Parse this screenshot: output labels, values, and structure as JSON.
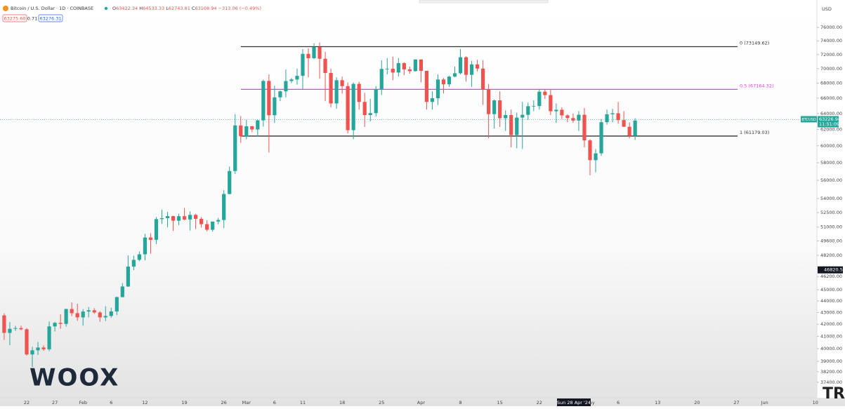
{
  "chart_data": {
    "type": "candlestick",
    "title": "Bitcoin / U.S. Dollar · 1D · COINBASE",
    "ohlc_legend": [
      {
        "key": "O",
        "value": 63422.34
      },
      {
        "key": "H",
        "value": 64533.33
      },
      {
        "key": "L",
        "value": 62743.81
      },
      {
        "key": "C",
        "value": 63108.94
      }
    ],
    "change": "−313.06 (−0.49%)",
    "bid": "63275.60",
    "spread": 0.71,
    "ask": 63276.31,
    "currency": "USD",
    "log_scale": true,
    "up_color": "#26a69a",
    "down_color": "#ef5350",
    "ylim": [
      36260,
      79400
    ],
    "yticks": [
      {
        "value": 76000,
        "label": "76000.00"
      },
      {
        "value": 74000,
        "label": "74000.00"
      },
      {
        "value": 72000,
        "label": "72000.00"
      },
      {
        "value": 70000,
        "label": "70000.00"
      },
      {
        "value": 68000,
        "label": "68000.00"
      },
      {
        "value": 66000,
        "label": "66000.00"
      },
      {
        "value": 64000,
        "label": "64000.00"
      },
      {
        "value": 62000,
        "label": "62000.00"
      },
      {
        "value": 60000,
        "label": "60000.00"
      },
      {
        "value": 58000,
        "label": "58000.00"
      },
      {
        "value": 56000,
        "label": "56000.00"
      },
      {
        "value": 54000,
        "label": "54000.00"
      },
      {
        "value": 52500,
        "label": "52500.00"
      },
      {
        "value": 51000,
        "label": "51000.00"
      },
      {
        "value": 49600,
        "label": "49600.00"
      },
      {
        "value": 48200,
        "label": "48200.00"
      },
      {
        "value": 46200,
        "label": "46200.00"
      },
      {
        "value": 45000,
        "label": "45000.00"
      },
      {
        "value": 44000,
        "label": "44000.00"
      },
      {
        "value": 43000,
        "label": "43000.00"
      },
      {
        "value": 42000,
        "label": "42000.00"
      },
      {
        "value": 41000,
        "label": "41000.00"
      },
      {
        "value": 40000,
        "label": "40000.00"
      },
      {
        "value": 39000,
        "label": "39000.00"
      },
      {
        "value": 38200,
        "label": "38200.00"
      },
      {
        "value": 37400,
        "label": "37400.00"
      }
    ],
    "categories": [
      null,
      null,
      null,
      null,
      "22",
      null,
      null,
      null,
      null,
      "27",
      null,
      null,
      null,
      null,
      "Feb",
      null,
      null,
      null,
      null,
      "6",
      null,
      null,
      null,
      null,
      null,
      "12",
      null,
      null,
      null,
      null,
      null,
      null,
      "19",
      null,
      null,
      null,
      null,
      null,
      null,
      "26",
      null,
      null,
      null,
      "Mar",
      null,
      null,
      null,
      null,
      "6",
      null,
      null,
      null,
      null,
      "11",
      null,
      null,
      null,
      null,
      null,
      null,
      "18",
      null,
      null,
      null,
      null,
      null,
      null,
      "25",
      null,
      null,
      null,
      null,
      null,
      null,
      "Apr",
      null,
      null,
      null,
      null,
      null,
      null,
      "8",
      null,
      null,
      null,
      null,
      null,
      null,
      "15",
      null,
      null,
      null,
      null,
      null,
      null,
      "22",
      null,
      null,
      null,
      null,
      null,
      null,
      null,
      null,
      "May",
      null,
      null,
      null,
      null,
      "6",
      null,
      null,
      null,
      null,
      null,
      null,
      "13",
      null,
      null,
      null,
      null,
      null,
      null,
      "20",
      null,
      null,
      null,
      null,
      null,
      null,
      "27",
      null,
      null,
      null,
      null,
      "Jun",
      null,
      null,
      null,
      null,
      null,
      null,
      null,
      null,
      "10"
    ],
    "series": [
      {
        "name": "BTCUSD",
        "values": [
          [
            42750,
            42930,
            40700,
            41280
          ],
          [
            41280,
            42180,
            40280,
            41620
          ],
          [
            41620,
            41870,
            41450,
            41680
          ],
          [
            41680,
            41880,
            41500,
            41580
          ],
          [
            41580,
            41680,
            39450,
            39540
          ],
          [
            39540,
            40150,
            38560,
            39870
          ],
          [
            39870,
            40540,
            39500,
            40090
          ],
          [
            40090,
            40260,
            39830,
            39950
          ],
          [
            39950,
            42240,
            39800,
            41820
          ],
          [
            41820,
            42200,
            41400,
            42120
          ],
          [
            42120,
            42840,
            41620,
            42030
          ],
          [
            42030,
            43320,
            41800,
            43300
          ],
          [
            43300,
            43880,
            42690,
            42940
          ],
          [
            42940,
            43750,
            42280,
            42580
          ],
          [
            42580,
            43290,
            41880,
            43080
          ],
          [
            43080,
            43480,
            42580,
            43190
          ],
          [
            43190,
            43380,
            42880,
            43000
          ],
          [
            43000,
            43120,
            42200,
            42580
          ],
          [
            42580,
            43540,
            42270,
            42700
          ],
          [
            42700,
            43400,
            42550,
            43090
          ],
          [
            43090,
            44380,
            42780,
            44340
          ],
          [
            44340,
            45600,
            44330,
            45290
          ],
          [
            45290,
            48200,
            45250,
            47130
          ],
          [
            47130,
            48170,
            46800,
            47770
          ],
          [
            47770,
            48580,
            47640,
            48300
          ],
          [
            48300,
            50330,
            47720,
            49950
          ],
          [
            49950,
            50370,
            48360,
            49720
          ],
          [
            49720,
            52040,
            49300,
            51820
          ],
          [
            51820,
            52820,
            51330,
            51920
          ],
          [
            51920,
            52580,
            51000,
            52130
          ],
          [
            52130,
            52170,
            50620,
            51660
          ],
          [
            51660,
            52380,
            51200,
            52120
          ],
          [
            52120,
            52980,
            51700,
            51780
          ],
          [
            51780,
            52620,
            50650,
            52260
          ],
          [
            52260,
            52380,
            50800,
            51850
          ],
          [
            51850,
            52040,
            50950,
            51300
          ],
          [
            51300,
            51690,
            50570,
            50730
          ],
          [
            50730,
            51380,
            50540,
            51570
          ],
          [
            51570,
            51950,
            51280,
            51730
          ],
          [
            51730,
            54900,
            50900,
            54490
          ],
          [
            54490,
            57570,
            54450,
            57050
          ],
          [
            57050,
            63930,
            56700,
            62490
          ],
          [
            62490,
            63680,
            60360,
            61160
          ],
          [
            61160,
            63170,
            60790,
            62390
          ],
          [
            62390,
            62430,
            61650,
            61990
          ],
          [
            61990,
            63240,
            61120,
            63130
          ],
          [
            63130,
            68500,
            62350,
            68300
          ],
          [
            68300,
            69200,
            59200,
            63780
          ],
          [
            63780,
            67650,
            62800,
            66100
          ],
          [
            66100,
            67000,
            65600,
            66900
          ],
          [
            66900,
            69900,
            66100,
            68290
          ],
          [
            68290,
            68700,
            68000,
            68500
          ],
          [
            68500,
            70000,
            67800,
            69000
          ],
          [
            69000,
            72800,
            67200,
            72100
          ],
          [
            72100,
            72900,
            68800,
            71480
          ],
          [
            71480,
            73650,
            71330,
            73100
          ],
          [
            73100,
            73750,
            68600,
            71400
          ],
          [
            71400,
            72400,
            65600,
            69400
          ],
          [
            69400,
            70000,
            64800,
            65300
          ],
          [
            65300,
            68800,
            64600,
            68400
          ],
          [
            68400,
            68900,
            66600,
            67600
          ],
          [
            67600,
            68100,
            61500,
            61900
          ],
          [
            61900,
            68100,
            60800,
            67900
          ],
          [
            67900,
            68200,
            64500,
            65500
          ],
          [
            65500,
            66700,
            62300,
            63800
          ],
          [
            63800,
            65900,
            63000,
            64050
          ],
          [
            64050,
            67600,
            63600,
            67200
          ],
          [
            67200,
            71200,
            66400,
            69960
          ],
          [
            69960,
            71500,
            69200,
            69990
          ],
          [
            69990,
            71700,
            68400,
            69460
          ],
          [
            69460,
            71500,
            68900,
            70780
          ],
          [
            70780,
            70900,
            69100,
            69900
          ],
          [
            69900,
            70300,
            69300,
            69650
          ],
          [
            69650,
            71300,
            69600,
            71300
          ],
          [
            71300,
            71300,
            68100,
            69700
          ],
          [
            69700,
            69700,
            64500,
            65500
          ],
          [
            65500,
            66900,
            64500,
            65980
          ],
          [
            65980,
            69200,
            65100,
            68500
          ],
          [
            68500,
            68700,
            66600,
            67840
          ],
          [
            67840,
            69000,
            67500,
            68900
          ],
          [
            68900,
            70300,
            68800,
            69360
          ],
          [
            69360,
            72800,
            69200,
            71620
          ],
          [
            71620,
            71750,
            68200,
            69140
          ],
          [
            69140,
            71100,
            67500,
            70600
          ],
          [
            70600,
            71250,
            69600,
            70010
          ],
          [
            70010,
            71200,
            65100,
            67200
          ],
          [
            67200,
            67900,
            60900,
            63920
          ],
          [
            63920,
            65800,
            62100,
            65700
          ],
          [
            65700,
            66900,
            62300,
            63400
          ],
          [
            63400,
            64400,
            61800,
            63800
          ],
          [
            63800,
            64500,
            59800,
            61300
          ],
          [
            61300,
            64100,
            59700,
            63480
          ],
          [
            63480,
            65500,
            59600,
            63830
          ],
          [
            63830,
            65400,
            63200,
            64940
          ],
          [
            64940,
            65700,
            64300,
            64960
          ],
          [
            64960,
            67200,
            64500,
            66850
          ],
          [
            66850,
            67200,
            65900,
            66400
          ],
          [
            66400,
            67100,
            63800,
            64290
          ],
          [
            64290,
            65300,
            62800,
            64480
          ],
          [
            64480,
            64800,
            63300,
            63760
          ],
          [
            63760,
            63900,
            62900,
            63420
          ],
          [
            63420,
            64000,
            62800,
            63100
          ],
          [
            63100,
            64300,
            61800,
            63840
          ],
          [
            63840,
            64700,
            59800,
            60650
          ],
          [
            60650,
            60800,
            56550,
            58300
          ],
          [
            58300,
            59600,
            56900,
            59100
          ],
          [
            59100,
            63300,
            58800,
            62900
          ],
          [
            62900,
            64500,
            62600,
            63900
          ],
          [
            63900,
            64600,
            62900,
            64030
          ],
          [
            64030,
            65500,
            62700,
            63160
          ],
          [
            63160,
            64300,
            62300,
            62330
          ],
          [
            62330,
            62900,
            60900,
            61200
          ],
          [
            61200,
            63400,
            60700,
            63100
          ],
          null,
          null,
          null,
          null,
          null,
          null,
          null,
          null,
          null,
          null,
          null,
          null,
          null,
          null,
          null,
          null,
          null,
          null,
          null,
          null,
          null,
          null,
          null,
          null,
          null,
          null,
          null,
          null,
          null,
          null,
          null,
          null
        ]
      }
    ],
    "fib_levels": [
      {
        "label": "0 (73149.62)",
        "value": 73149.62,
        "color": "#333333"
      },
      {
        "label": "0.5 (67164.32)",
        "value": 67164.32,
        "color": "#e040e0"
      },
      {
        "label": "1 (61179.03)",
        "value": 61179.03,
        "color": "#333333"
      }
    ],
    "price_label": {
      "symbol": "BTCUSD",
      "price": 63226.94,
      "countdown": "11:51:09"
    },
    "crosshair": {
      "price": 46820.54,
      "date": "Sun 28 Apr '24"
    },
    "watermark": "WOOX",
    "corner_logo": "TR"
  }
}
